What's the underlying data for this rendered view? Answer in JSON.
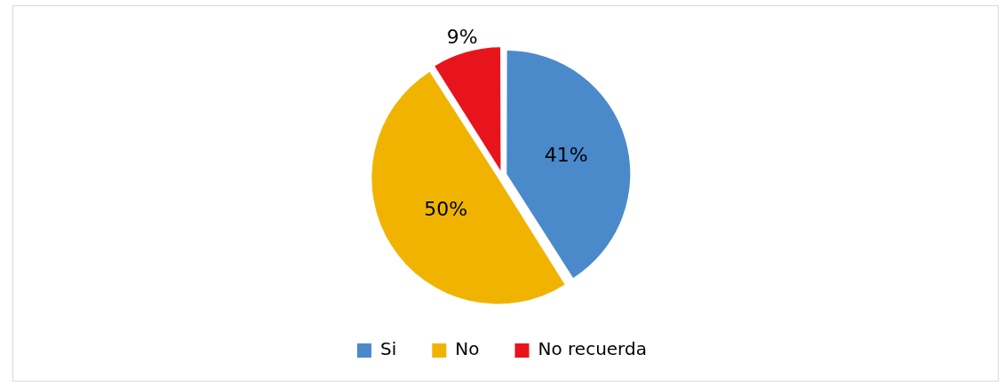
{
  "chart_data": {
    "type": "pie",
    "categories": [
      "Si",
      "No",
      "No recuerda"
    ],
    "values": [
      41,
      50,
      9
    ],
    "colors": [
      "#4a8acb",
      "#f0b400",
      "#e8141c"
    ],
    "value_labels": [
      "41%",
      "50%",
      "9%"
    ],
    "legend": "bottom"
  }
}
